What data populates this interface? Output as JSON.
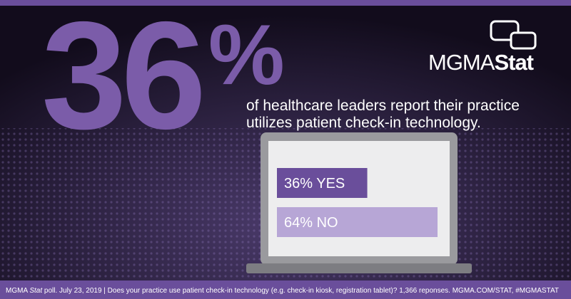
{
  "headline": {
    "number": "36",
    "symbol": "%"
  },
  "logo": {
    "main": "MGMA",
    "accent": "Stat"
  },
  "statement": [
    "of healthcare leaders report their practice",
    "utilizes patient check-in technology."
  ],
  "poll": {
    "options": [
      {
        "label": "36% YES",
        "value": 36,
        "color": "#6a4e9b"
      },
      {
        "label": "64% NO",
        "value": 64,
        "color": "#b7a6d6"
      }
    ]
  },
  "footer": {
    "brand": "MGMA ",
    "brand_italic": "Stat",
    "text": " poll. July 23, 2019 | Does your practice use patient check-in technology (e.g. check-in kiosk, registration tablet)? 1,366 reponses. MGMA.COM/STAT, #MGMASTAT"
  }
}
